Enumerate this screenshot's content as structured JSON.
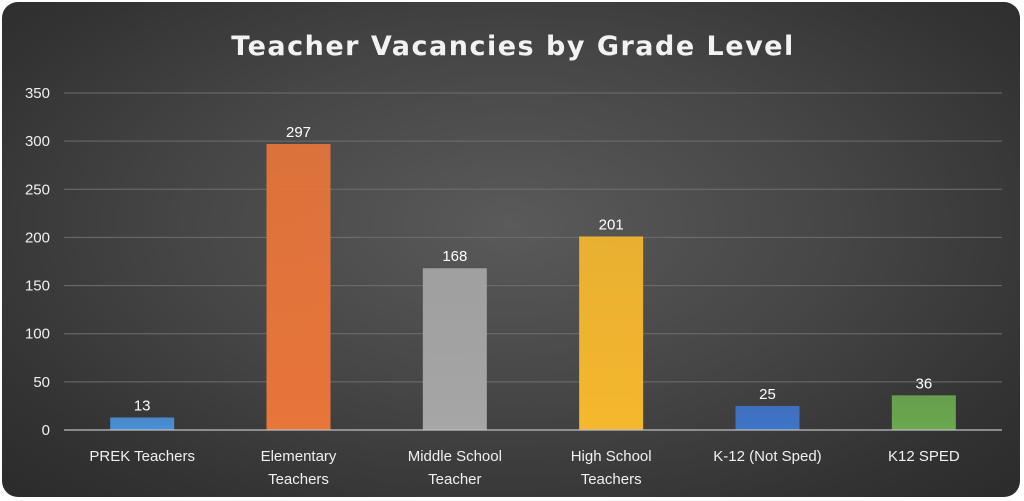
{
  "chart_data": {
    "type": "bar",
    "title": "Teacher Vacancies by Grade Level",
    "xlabel": "",
    "ylabel": "",
    "categories": [
      [
        "PREK Teachers"
      ],
      [
        "Elementary",
        "Teachers"
      ],
      [
        "Middle School",
        "Teacher"
      ],
      [
        "High School",
        "Teachers"
      ],
      [
        "K-12 (Not Sped)"
      ],
      [
        "K12 SPED"
      ]
    ],
    "values": [
      13,
      297,
      168,
      201,
      25,
      36
    ],
    "bar_colors": [
      "#4a8fd6",
      "#e8753a",
      "#a6a6a6",
      "#f5b82e",
      "#3f74c9",
      "#6aa84f"
    ],
    "ylim": [
      0,
      350
    ],
    "yticks": [
      0,
      50,
      100,
      150,
      200,
      250,
      300,
      350
    ],
    "grid": true,
    "legend": "none",
    "data_labels": true
  },
  "colors": {
    "gridline": "#6e6e6e",
    "axis": "#bfbfbf"
  }
}
